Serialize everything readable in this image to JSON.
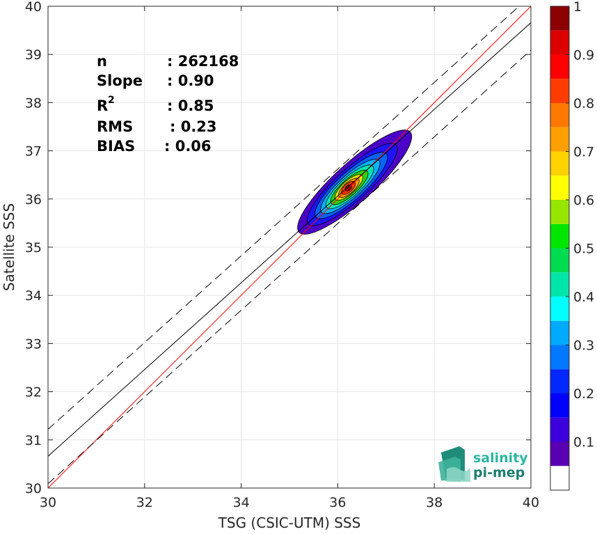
{
  "chart_data": {
    "type": "contour-density-scatter",
    "xlabel": "TSG (CSIC-UTM) SSS",
    "ylabel": "Satellite SSS",
    "xlim": [
      30,
      40
    ],
    "ylim": [
      30,
      40
    ],
    "xticks": [
      "30",
      "32",
      "34",
      "36",
      "38",
      "40"
    ],
    "yticks": [
      "30",
      "31",
      "32",
      "33",
      "34",
      "35",
      "36",
      "37",
      "38",
      "39",
      "40"
    ],
    "grid": true,
    "stats": [
      {
        "label": "n",
        "value": ": 262168"
      },
      {
        "label": "Slope",
        "value": ": 0.90"
      },
      {
        "label": "R",
        "sup": "2",
        "value": ": 0.85"
      },
      {
        "label": "RMS",
        "value": ": 0.23"
      },
      {
        "label": "BIAS",
        "value": ": 0.06"
      }
    ],
    "lines": [
      {
        "role": "identity",
        "color": "#ff0000",
        "style": "solid",
        "points": [
          [
            30,
            30
          ],
          [
            40,
            40
          ]
        ]
      },
      {
        "role": "regression",
        "color": "#000000",
        "style": "solid",
        "points": [
          [
            30,
            30.66
          ],
          [
            40,
            39.66
          ]
        ]
      },
      {
        "role": "upper-bound",
        "color": "#000000",
        "style": "dashed",
        "points": [
          [
            30,
            31.22
          ],
          [
            40,
            40.22
          ]
        ]
      },
      {
        "role": "lower-bound",
        "color": "#000000",
        "style": "dashed",
        "points": [
          [
            30,
            30.09
          ],
          [
            40,
            39.09
          ]
        ]
      }
    ],
    "density_peak": {
      "x": 36.22,
      "y": 36.23
    },
    "contours": [
      {
        "level": 0.05,
        "color": "#4b00c8",
        "cx": 36.35,
        "cy": 36.35,
        "rmajor": 1.55,
        "rminor": 0.4
      },
      {
        "level": 0.15,
        "color": "#1e14ff",
        "cx": 36.3,
        "cy": 36.3,
        "rmajor": 1.22,
        "rminor": 0.33
      },
      {
        "level": 0.25,
        "color": "#0064ff",
        "cx": 36.28,
        "cy": 36.28,
        "rmajor": 0.98,
        "rminor": 0.28
      },
      {
        "level": 0.35,
        "color": "#00b4ff",
        "cx": 36.26,
        "cy": 36.26,
        "rmajor": 0.8,
        "rminor": 0.235
      },
      {
        "level": 0.45,
        "color": "#00e6b4",
        "cx": 36.25,
        "cy": 36.25,
        "rmajor": 0.64,
        "rminor": 0.2
      },
      {
        "level": 0.55,
        "color": "#32d200",
        "cx": 36.24,
        "cy": 36.24,
        "rmajor": 0.5,
        "rminor": 0.165
      },
      {
        "level": 0.65,
        "color": "#e6e600",
        "cx": 36.23,
        "cy": 36.24,
        "rmajor": 0.37,
        "rminor": 0.135
      },
      {
        "level": 0.75,
        "color": "#ffa000",
        "cx": 36.23,
        "cy": 36.23,
        "rmajor": 0.27,
        "rminor": 0.11
      },
      {
        "level": 0.85,
        "color": "#ff3c00",
        "cx": 36.22,
        "cy": 36.23,
        "rmajor": 0.18,
        "rminor": 0.085
      },
      {
        "level": 0.95,
        "color": "#8c0000",
        "cx": 36.22,
        "cy": 36.23,
        "rmajor": 0.08,
        "rminor": 0.05
      }
    ],
    "colorbar": {
      "ticks": [
        "0.1",
        "0.2",
        "0.3",
        "0.4",
        "0.5",
        "0.6",
        "0.7",
        "0.8",
        "0.9",
        "1"
      ],
      "bins": [
        {
          "from": 0.0,
          "to": 0.05,
          "color": "#ffffff"
        },
        {
          "from": 0.05,
          "to": 0.1,
          "color": "#5a00b4"
        },
        {
          "from": 0.1,
          "to": 0.15,
          "color": "#3c00dc"
        },
        {
          "from": 0.15,
          "to": 0.2,
          "color": "#0000ff"
        },
        {
          "from": 0.2,
          "to": 0.25,
          "color": "#0028ff"
        },
        {
          "from": 0.25,
          "to": 0.3,
          "color": "#0078ff"
        },
        {
          "from": 0.3,
          "to": 0.35,
          "color": "#00aaff"
        },
        {
          "from": 0.35,
          "to": 0.4,
          "color": "#00ffff"
        },
        {
          "from": 0.4,
          "to": 0.45,
          "color": "#00e6aa"
        },
        {
          "from": 0.45,
          "to": 0.5,
          "color": "#00dc50"
        },
        {
          "from": 0.5,
          "to": 0.55,
          "color": "#00e600"
        },
        {
          "from": 0.55,
          "to": 0.6,
          "color": "#96e600"
        },
        {
          "from": 0.6,
          "to": 0.65,
          "color": "#ffff00"
        },
        {
          "from": 0.65,
          "to": 0.7,
          "color": "#ffd200"
        },
        {
          "from": 0.7,
          "to": 0.75,
          "color": "#ffa000"
        },
        {
          "from": 0.75,
          "to": 0.8,
          "color": "#ff7800"
        },
        {
          "from": 0.8,
          "to": 0.85,
          "color": "#ff3c00"
        },
        {
          "from": 0.85,
          "to": 0.9,
          "color": "#ff0000"
        },
        {
          "from": 0.9,
          "to": 0.95,
          "color": "#dc0000"
        },
        {
          "from": 0.95,
          "to": 1.0,
          "color": "#8c0000"
        }
      ]
    }
  },
  "logo": {
    "line1": "salinity",
    "line2": "pi-mep",
    "color1": "#2bb7a0",
    "color2": "#1d7e6e"
  }
}
